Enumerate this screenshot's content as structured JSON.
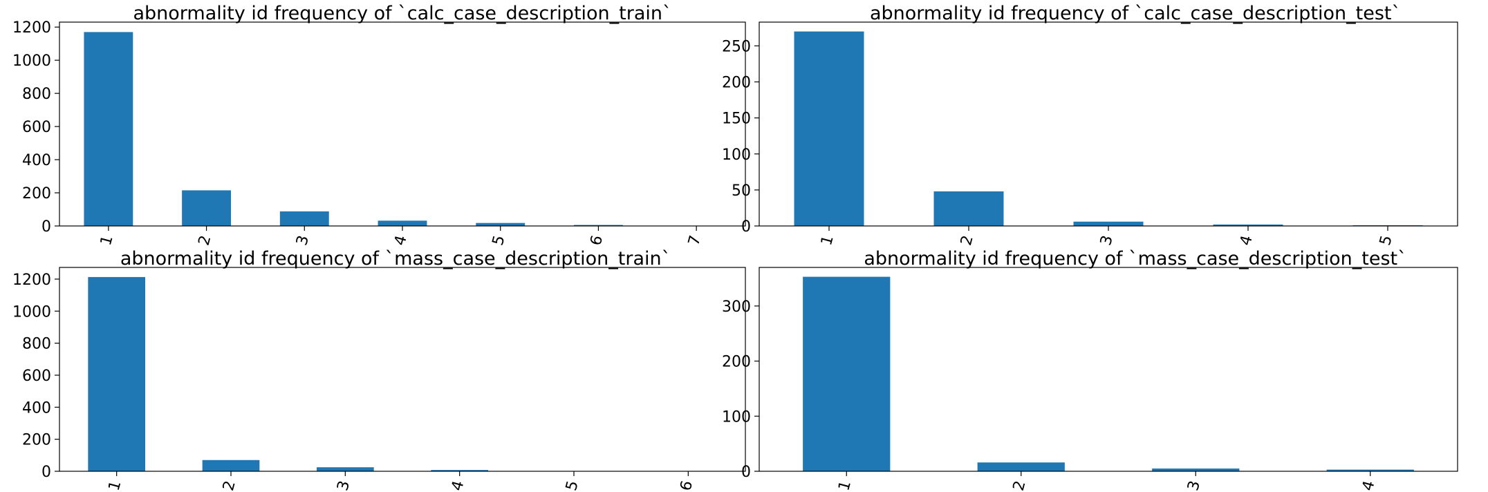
{
  "colors": {
    "bar": "#1f77b4",
    "axis": "#000000",
    "background": "#ffffff"
  },
  "chart_data": [
    {
      "type": "bar",
      "title": "abnormality id frequency of `calc_case_description_train`",
      "categories": [
        "1",
        "2",
        "3",
        "4",
        "5",
        "6",
        "7"
      ],
      "values": [
        1170,
        215,
        88,
        32,
        18,
        6,
        2
      ],
      "ylim": [
        0,
        1230
      ],
      "yticks": [
        0,
        200,
        400,
        600,
        800,
        1000,
        1200
      ],
      "xlabel": "",
      "ylabel": "",
      "grid": false
    },
    {
      "type": "bar",
      "title": "abnormality id frequency of `calc_case_description_test`",
      "categories": [
        "1",
        "2",
        "3",
        "4",
        "5"
      ],
      "values": [
        270,
        48,
        6,
        2,
        1
      ],
      "ylim": [
        0,
        283
      ],
      "yticks": [
        0,
        50,
        100,
        150,
        200,
        250
      ],
      "xlabel": "",
      "ylabel": "",
      "grid": false
    },
    {
      "type": "bar",
      "title": "abnormality id frequency of `mass_case_description_train`",
      "categories": [
        "1",
        "2",
        "3",
        "4",
        "5",
        "6"
      ],
      "values": [
        1213,
        70,
        25,
        8,
        2,
        2
      ],
      "ylim": [
        0,
        1273
      ],
      "yticks": [
        0,
        200,
        400,
        600,
        800,
        1000,
        1200
      ],
      "xlabel": "",
      "ylabel": "",
      "grid": false
    },
    {
      "type": "bar",
      "title": "abnormality id frequency of `mass_case_description_test`",
      "categories": [
        "1",
        "2",
        "3",
        "4"
      ],
      "values": [
        353,
        16,
        5,
        3
      ],
      "ylim": [
        0,
        370
      ],
      "yticks": [
        0,
        100,
        200,
        300
      ],
      "xlabel": "",
      "ylabel": "",
      "grid": false
    }
  ]
}
